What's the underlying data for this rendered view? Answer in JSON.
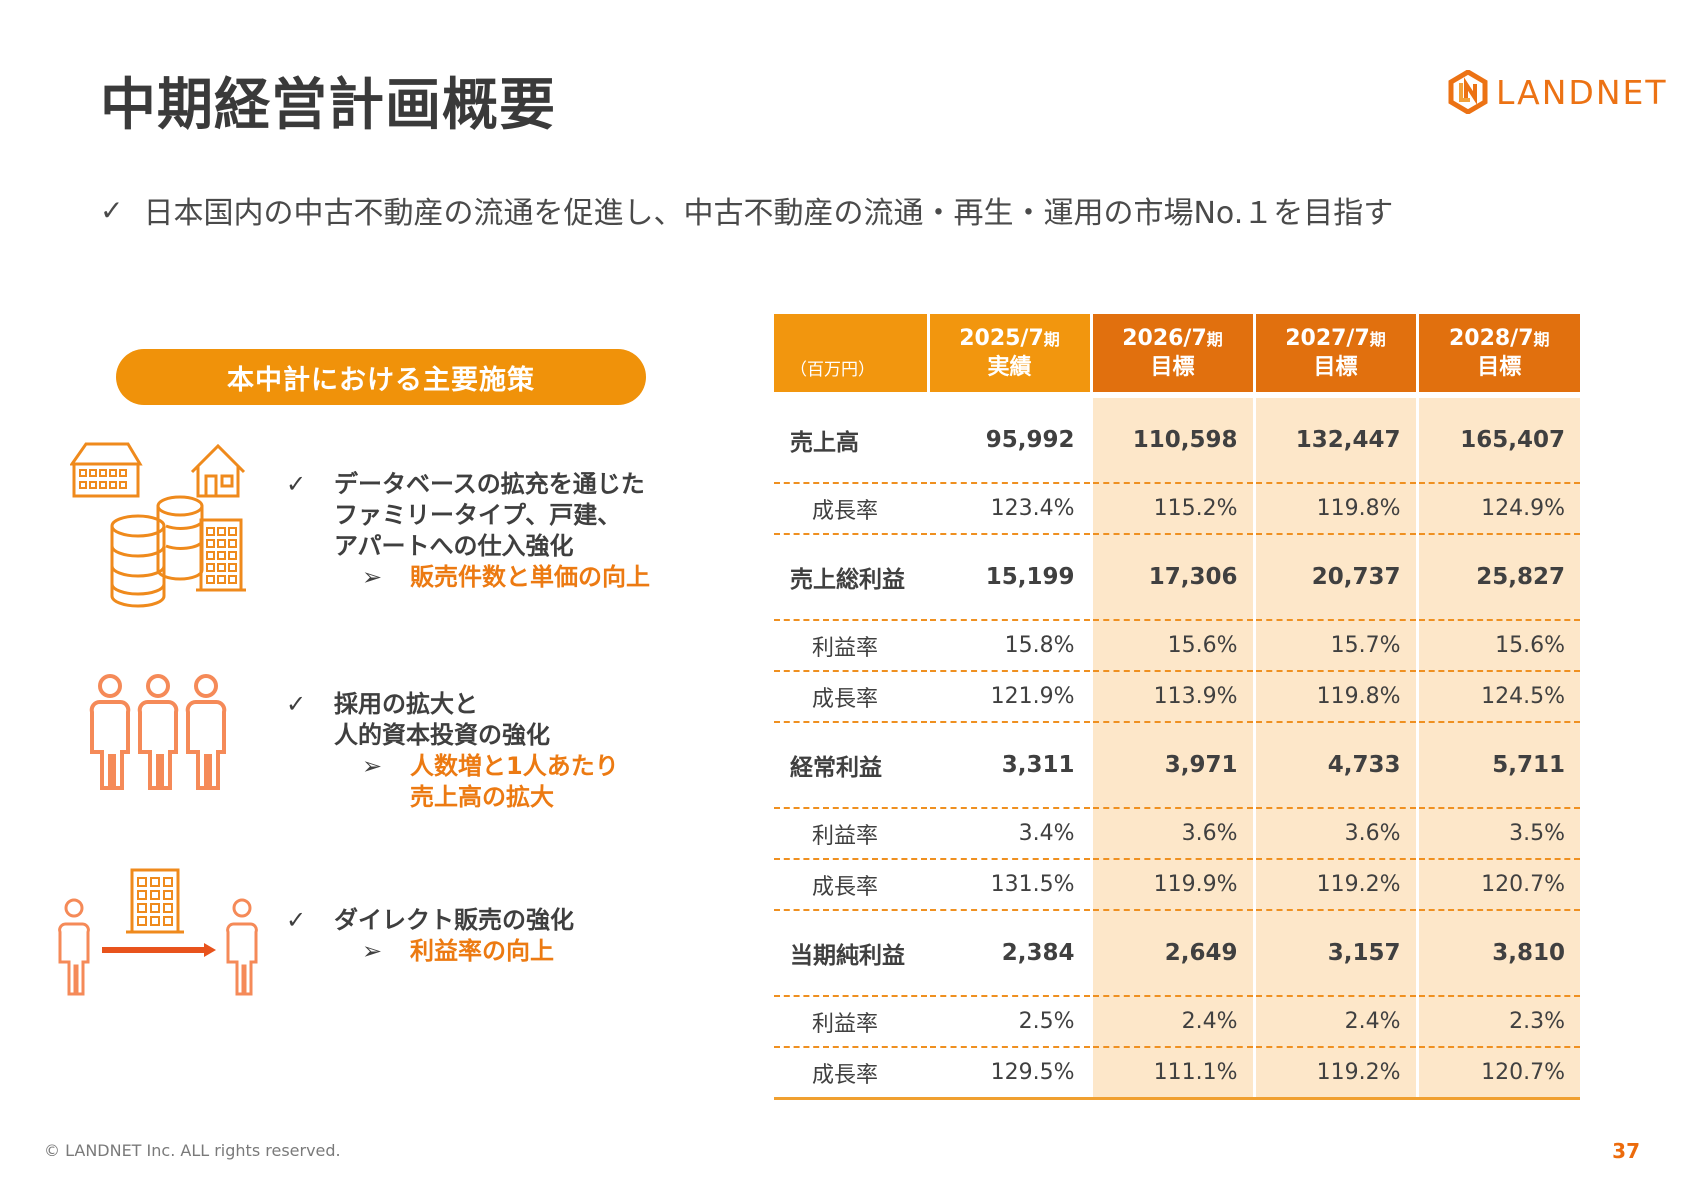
{
  "title": "中期経営計画概要",
  "logo_text": "LANDNET",
  "subtitle": {
    "check": "✓",
    "text": "日本国内の中古不動産の流通を促進し、中古不動産の流通・再生・運用の市場No.１を目指す"
  },
  "initiatives": {
    "heading": "本中計における主要施策",
    "items": [
      {
        "lines": [
          "データベースの拡充を通じた",
          "ファミリータイプ、戸建、",
          "アパートへの仕入強化"
        ],
        "result": [
          "販売件数と単価の向上"
        ]
      },
      {
        "lines": [
          "採用の拡大と",
          "人的資本投資の強化"
        ],
        "result": [
          "人数増と1人あたり",
          "売上高の拡大"
        ]
      },
      {
        "lines": [
          "ダイレクト販売の強化"
        ],
        "result": [
          "利益率の向上"
        ]
      }
    ],
    "check": "✓",
    "arrow": "➢"
  },
  "table": {
    "unit": "（百万円）",
    "columns": [
      {
        "period": "2025/7",
        "suffix": "期",
        "kind": "実績"
      },
      {
        "period": "2026/7",
        "suffix": "期",
        "kind": "目標"
      },
      {
        "period": "2027/7",
        "suffix": "期",
        "kind": "目標"
      },
      {
        "period": "2028/7",
        "suffix": "期",
        "kind": "目標"
      }
    ],
    "rows": [
      {
        "label": "売上高",
        "values": [
          "95,992",
          "110,598",
          "132,447",
          "165,407"
        ],
        "type": "main"
      },
      {
        "label": "成長率",
        "values": [
          "123.4%",
          "115.2%",
          "119.8%",
          "124.9%"
        ],
        "type": "sub"
      },
      {
        "label": "売上総利益",
        "values": [
          "15,199",
          "17,306",
          "20,737",
          "25,827"
        ],
        "type": "main"
      },
      {
        "label": "利益率",
        "values": [
          "15.8%",
          "15.6%",
          "15.7%",
          "15.6%"
        ],
        "type": "sub"
      },
      {
        "label": "成長率",
        "values": [
          "121.9%",
          "113.9%",
          "119.8%",
          "124.5%"
        ],
        "type": "sub"
      },
      {
        "label": "経常利益",
        "values": [
          "3,311",
          "3,971",
          "4,733",
          "5,711"
        ],
        "type": "main"
      },
      {
        "label": "利益率",
        "values": [
          "3.4%",
          "3.6%",
          "3.6%",
          "3.5%"
        ],
        "type": "sub"
      },
      {
        "label": "成長率",
        "values": [
          "131.5%",
          "119.9%",
          "119.2%",
          "120.7%"
        ],
        "type": "sub"
      },
      {
        "label": "当期純利益",
        "values": [
          "2,384",
          "2,649",
          "3,157",
          "3,810"
        ],
        "type": "main"
      },
      {
        "label": "利益率",
        "values": [
          "2.5%",
          "2.4%",
          "2.4%",
          "2.3%"
        ],
        "type": "sub"
      },
      {
        "label": "成長率",
        "values": [
          "129.5%",
          "111.1%",
          "119.2%",
          "120.7%"
        ],
        "type": "sub"
      }
    ]
  },
  "footer": "© LANDNET Inc. ALL rights reserved.",
  "page_number": "37",
  "colors": {
    "accent": "#f0920a",
    "header_target": "#e1700e",
    "target_fill": "#fde7c9",
    "brand": "#ec7214"
  }
}
